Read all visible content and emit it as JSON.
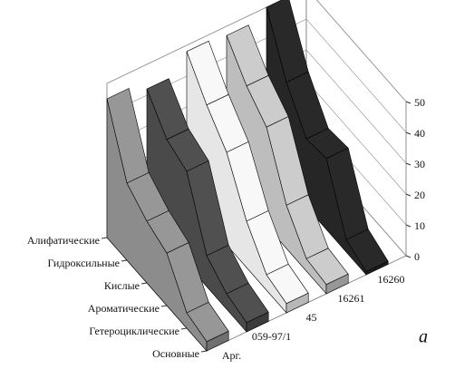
{
  "chart_data": {
    "type": "ribbon3d",
    "categories": [
      "Алифатические",
      "Гидроксильные",
      "Кислые",
      "Ароматические",
      "Гетероциклические",
      "Основные"
    ],
    "series": [
      {
        "name": "Арг.",
        "color": "#8c8c8c",
        "values": [
          45,
          25,
          20,
          17,
          5,
          3
        ]
      },
      {
        "name": "059-97/1",
        "color": "#4a4a4a",
        "values": [
          42,
          33,
          30,
          10,
          5,
          3
        ]
      },
      {
        "name": "45",
        "color": "#e6e6e6",
        "values": [
          48,
          38,
          30,
          15,
          5,
          3
        ]
      },
      {
        "name": "16261",
        "color": "#bdbdbd",
        "values": [
          47,
          38,
          32,
          14,
          4,
          3
        ]
      },
      {
        "name": "16260",
        "color": "#262626",
        "values": [
          50,
          33,
          22,
          23,
          4,
          1
        ]
      }
    ],
    "zlim": [
      0,
      50
    ],
    "zticks": [
      0,
      10,
      20,
      30,
      40,
      50
    ],
    "grid": true,
    "annotation": "а"
  }
}
